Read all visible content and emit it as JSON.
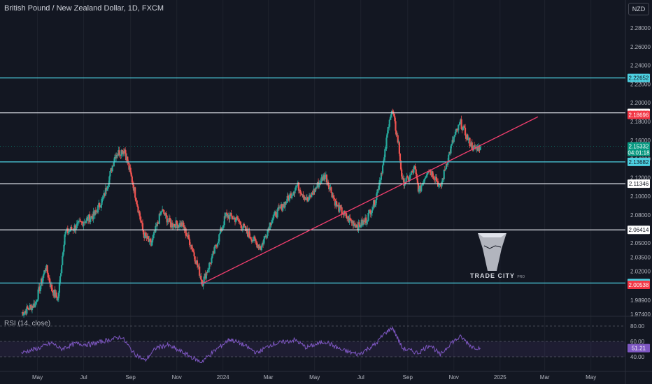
{
  "header": {
    "title": "British Pound / New Zealand Dollar, 1D, FXCM",
    "currency": "NZD",
    "rsi_title": "RSI (14, close)",
    "brand": "TRADE CITY",
    "brand_sub": "PRO"
  },
  "colors": {
    "background": "#131722",
    "grid": "#1e222d",
    "up": "#26a69a",
    "down": "#ef5350",
    "trendline": "#f23e6e",
    "cyan_level": "#4dd0e1",
    "white_level": "#e0e3eb",
    "rsi_line": "#7e57c2"
  },
  "chart_data": [
    {
      "type": "candlestick",
      "title": "British Pound / New Zealand Dollar, 1D, FXCM",
      "x_ticks": [
        "May",
        "Jul",
        "Sep",
        "Nov",
        "2024",
        "Mar",
        "May",
        "Jul",
        "Sep",
        "Nov",
        "2025",
        "Mar",
        "May"
      ],
      "y_ticks": [
        "2.28000",
        "2.26000",
        "2.24000",
        "2.22000",
        "2.20000",
        "2.18000",
        "2.16000",
        "2.14000",
        "2.12000",
        "2.10000",
        "2.08000",
        "2.05000",
        "2.03500",
        "2.02000",
        "1.98900",
        "1.97400"
      ],
      "ylim": [
        1.974,
        2.295
      ],
      "price_path": [
        {
          "date": "2023-04-10",
          "price": 1.975
        },
        {
          "date": "2023-04-28",
          "price": 1.985
        },
        {
          "date": "2023-05-12",
          "price": 2.025
        },
        {
          "date": "2023-05-20",
          "price": 2.0
        },
        {
          "date": "2023-05-28",
          "price": 1.99
        },
        {
          "date": "2023-06-06",
          "price": 2.06
        },
        {
          "date": "2023-06-25",
          "price": 2.07
        },
        {
          "date": "2023-07-15",
          "price": 2.08
        },
        {
          "date": "2023-07-28",
          "price": 2.1
        },
        {
          "date": "2023-08-12",
          "price": 2.145
        },
        {
          "date": "2023-08-24",
          "price": 2.15
        },
        {
          "date": "2023-09-05",
          "price": 2.11
        },
        {
          "date": "2023-09-18",
          "price": 2.06
        },
        {
          "date": "2023-09-28",
          "price": 2.048
        },
        {
          "date": "2023-10-12",
          "price": 2.085
        },
        {
          "date": "2023-10-24",
          "price": 2.07
        },
        {
          "date": "2023-11-08",
          "price": 2.07
        },
        {
          "date": "2023-11-20",
          "price": 2.048
        },
        {
          "date": "2023-12-05",
          "price": 2.008
        },
        {
          "date": "2023-12-18",
          "price": 2.035
        },
        {
          "date": "2024-01-05",
          "price": 2.08
        },
        {
          "date": "2024-01-20",
          "price": 2.075
        },
        {
          "date": "2024-02-05",
          "price": 2.058
        },
        {
          "date": "2024-02-20",
          "price": 2.045
        },
        {
          "date": "2024-03-05",
          "price": 2.075
        },
        {
          "date": "2024-03-25",
          "price": 2.095
        },
        {
          "date": "2024-04-08",
          "price": 2.112
        },
        {
          "date": "2024-04-22",
          "price": 2.095
        },
        {
          "date": "2024-05-05",
          "price": 2.112
        },
        {
          "date": "2024-05-15",
          "price": 2.123
        },
        {
          "date": "2024-05-30",
          "price": 2.09
        },
        {
          "date": "2024-06-15",
          "price": 2.075
        },
        {
          "date": "2024-06-28",
          "price": 2.068
        },
        {
          "date": "2024-07-08",
          "price": 2.075
        },
        {
          "date": "2024-07-20",
          "price": 2.095
        },
        {
          "date": "2024-08-01",
          "price": 2.14
        },
        {
          "date": "2024-08-08",
          "price": 2.185
        },
        {
          "date": "2024-08-12",
          "price": 2.19
        },
        {
          "date": "2024-08-20",
          "price": 2.155
        },
        {
          "date": "2024-08-25",
          "price": 2.115
        },
        {
          "date": "2024-09-02",
          "price": 2.118
        },
        {
          "date": "2024-09-10",
          "price": 2.13
        },
        {
          "date": "2024-09-16",
          "price": 2.105
        },
        {
          "date": "2024-09-28",
          "price": 2.13
        },
        {
          "date": "2024-10-08",
          "price": 2.12
        },
        {
          "date": "2024-10-14",
          "price": 2.108
        },
        {
          "date": "2024-10-22",
          "price": 2.135
        },
        {
          "date": "2024-11-02",
          "price": 2.165
        },
        {
          "date": "2024-11-10",
          "price": 2.178
        },
        {
          "date": "2024-11-20",
          "price": 2.16
        },
        {
          "date": "2024-11-28",
          "price": 2.15
        },
        {
          "date": "2024-12-06",
          "price": 2.153
        }
      ],
      "horizontal_levels": [
        {
          "price": 2.22652,
          "label": "2.22652",
          "style": "cyan"
        },
        {
          "price": 2.18921,
          "label": "2.18921",
          "style": "white"
        },
        {
          "price": 2.13682,
          "label": "2.13682",
          "style": "cyan"
        },
        {
          "price": 2.11346,
          "label": "2.11346",
          "style": "white"
        },
        {
          "price": 2.06414,
          "label": "2.06414",
          "style": "white"
        },
        {
          "price": 2.00732,
          "label": "2.00732",
          "style": "cyan"
        }
      ],
      "price_tags": [
        {
          "price": 2.18696,
          "label": "2.18696",
          "style": "red"
        },
        {
          "price": 2.15332,
          "label": "2.15332",
          "style": "teal",
          "countdown": "04:01:18"
        },
        {
          "price": 2.00538,
          "label": "2.00538",
          "style": "red"
        }
      ],
      "trendline": [
        {
          "date": "2023-12-03",
          "price": 2.006
        },
        {
          "date": "2025-02-20",
          "price": 2.185
        }
      ]
    },
    {
      "type": "line",
      "title": "RSI (14, close)",
      "ylim": [
        30,
        90
      ],
      "y_ticks": [
        "80.00",
        "60.00",
        "40.00"
      ],
      "band": [
        40,
        60
      ],
      "last_value": "51.21",
      "rsi_path": [
        {
          "date": "2023-04-10",
          "rsi": 45
        },
        {
          "date": "2023-05-05",
          "rsi": 52
        },
        {
          "date": "2023-05-20",
          "rsi": 58
        },
        {
          "date": "2023-06-01",
          "rsi": 50
        },
        {
          "date": "2023-06-20",
          "rsi": 57
        },
        {
          "date": "2023-07-10",
          "rsi": 56
        },
        {
          "date": "2023-07-30",
          "rsi": 61
        },
        {
          "date": "2023-08-20",
          "rsi": 66
        },
        {
          "date": "2023-09-05",
          "rsi": 45
        },
        {
          "date": "2023-09-20",
          "rsi": 35
        },
        {
          "date": "2023-10-05",
          "rsi": 52
        },
        {
          "date": "2023-10-20",
          "rsi": 55
        },
        {
          "date": "2023-11-10",
          "rsi": 45
        },
        {
          "date": "2023-12-03",
          "rsi": 33
        },
        {
          "date": "2023-12-20",
          "rsi": 47
        },
        {
          "date": "2024-01-10",
          "rsi": 63
        },
        {
          "date": "2024-01-25",
          "rsi": 57
        },
        {
          "date": "2024-02-15",
          "rsi": 45
        },
        {
          "date": "2024-03-05",
          "rsi": 56
        },
        {
          "date": "2024-04-05",
          "rsi": 62
        },
        {
          "date": "2024-04-20",
          "rsi": 52
        },
        {
          "date": "2024-05-15",
          "rsi": 60
        },
        {
          "date": "2024-06-05",
          "rsi": 49
        },
        {
          "date": "2024-06-28",
          "rsi": 43
        },
        {
          "date": "2024-07-20",
          "rsi": 56
        },
        {
          "date": "2024-08-01",
          "rsi": 70
        },
        {
          "date": "2024-08-12",
          "rsi": 78
        },
        {
          "date": "2024-08-25",
          "rsi": 51
        },
        {
          "date": "2024-09-15",
          "rsi": 45
        },
        {
          "date": "2024-10-01",
          "rsi": 56
        },
        {
          "date": "2024-10-14",
          "rsi": 42
        },
        {
          "date": "2024-10-28",
          "rsi": 58
        },
        {
          "date": "2024-11-10",
          "rsi": 66
        },
        {
          "date": "2024-11-25",
          "rsi": 53
        },
        {
          "date": "2024-12-06",
          "rsi": 51.21
        }
      ]
    }
  ]
}
